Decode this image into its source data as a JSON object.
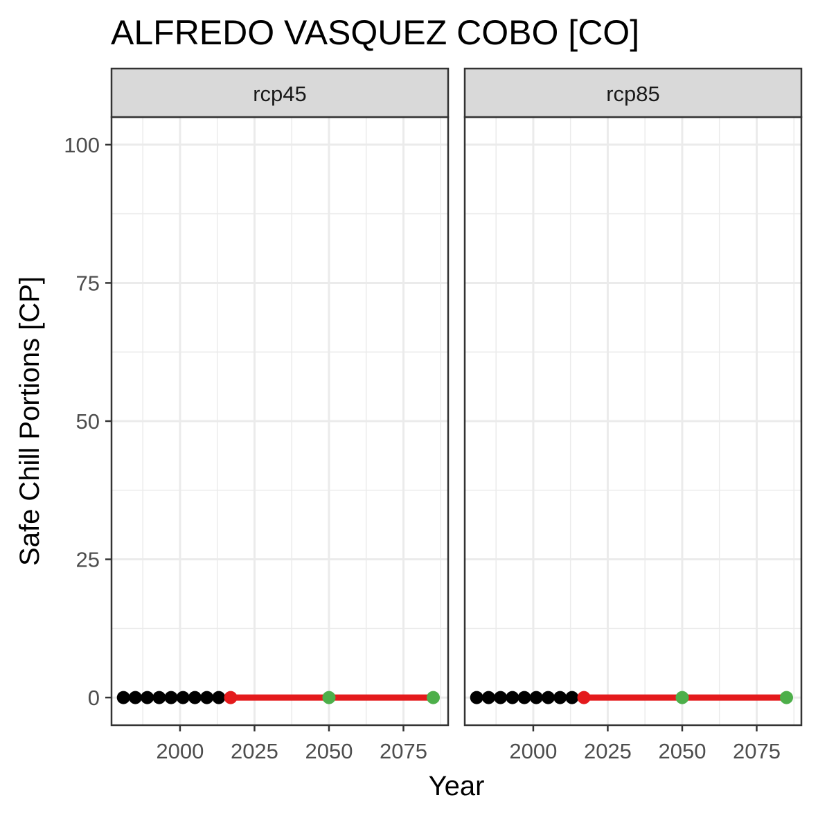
{
  "chart_data": {
    "type": "line",
    "title": "ALFREDO VASQUEZ COBO [CO]",
    "xlabel": "Year",
    "ylabel": "Safe Chill Portions [CP]",
    "xlim": [
      1977,
      2090
    ],
    "ylim": [
      -5,
      105
    ],
    "x_ticks": [
      2000,
      2025,
      2050,
      2075
    ],
    "y_ticks": [
      0,
      25,
      50,
      75,
      100
    ],
    "grid": true,
    "legend": "none",
    "colors": {
      "historic_points": "#000000",
      "projection_line": "#e41a1c",
      "baseline_point": "#e41a1c",
      "future_points": "#4daf4a",
      "strip_fill": "#d9d9d9",
      "panel_border": "#333333",
      "grid": "#ebebeb"
    },
    "panels": [
      {
        "label": "rcp45",
        "historic": {
          "x": [
            1981,
            1985,
            1989,
            1993,
            1997,
            2001,
            2005,
            2009,
            2013
          ],
          "y": [
            0,
            0,
            0,
            0,
            0,
            0,
            0,
            0,
            0
          ]
        },
        "projection_line": {
          "x": [
            2017,
            2085
          ],
          "y": [
            0,
            0
          ]
        },
        "baseline": {
          "x": [
            2017
          ],
          "y": [
            0
          ]
        },
        "future": {
          "x": [
            2050,
            2085
          ],
          "y": [
            0,
            0
          ]
        }
      },
      {
        "label": "rcp85",
        "historic": {
          "x": [
            1981,
            1985,
            1989,
            1993,
            1997,
            2001,
            2005,
            2009,
            2013
          ],
          "y": [
            0,
            0,
            0,
            0,
            0,
            0,
            0,
            0,
            0
          ]
        },
        "projection_line": {
          "x": [
            2017,
            2085
          ],
          "y": [
            0,
            0
          ]
        },
        "baseline": {
          "x": [
            2017
          ],
          "y": [
            0
          ]
        },
        "future": {
          "x": [
            2050,
            2085
          ],
          "y": [
            0,
            0
          ]
        }
      }
    ]
  }
}
